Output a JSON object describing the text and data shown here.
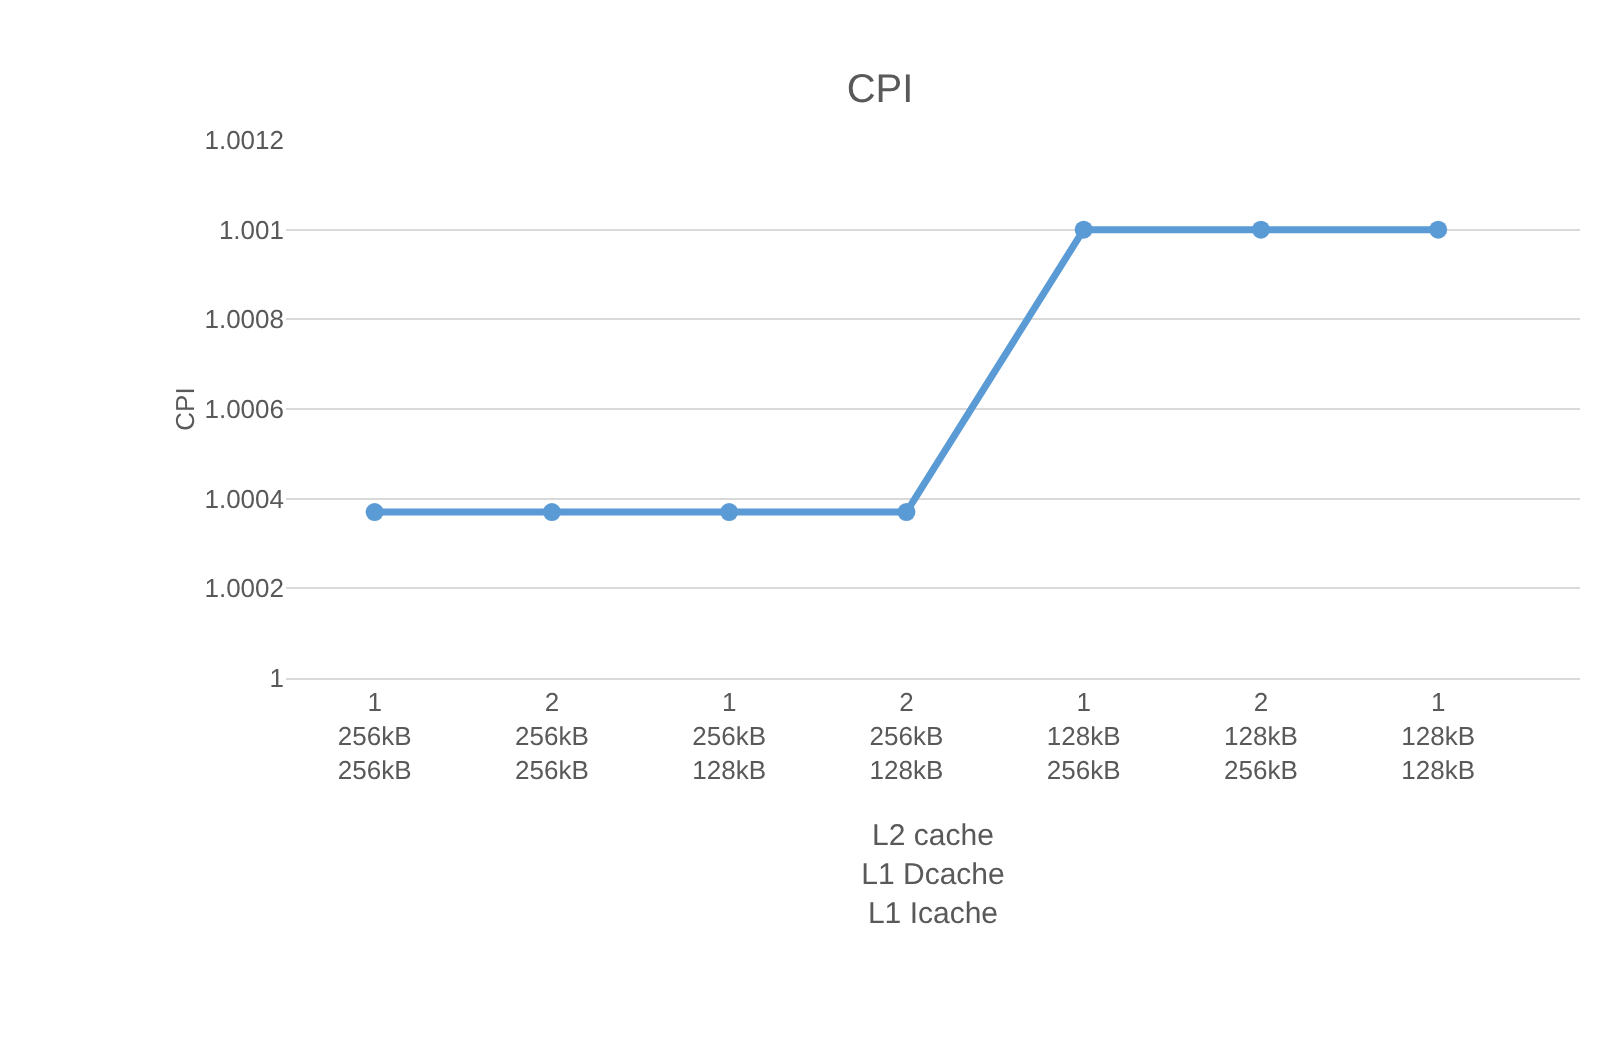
{
  "chart_data": {
    "type": "line",
    "title": "CPI",
    "ylabel": "CPI",
    "xlabel": "L2 cache\nL1 Dcache\nL1 Icache",
    "categories": [
      "1\n256kB\n256kB",
      "2\n256kB\n256kB",
      "1\n256kB\n128kB",
      "2\n256kB\n128kB",
      "1\n128kB\n256kB",
      "2\n128kB\n256kB",
      "1\n128kB\n128kB"
    ],
    "series": [
      {
        "color": "#5b9bd5",
        "values": [
          1.00037,
          1.00037,
          1.00037,
          1.00037,
          1.001,
          1.001,
          1.001
        ]
      }
    ],
    "ylim": [
      1,
      1.0012
    ],
    "yticks": [
      1,
      1.0002,
      1.0004,
      1.0006,
      1.0008,
      1.001,
      1.0012
    ],
    "grid": "y",
    "marker": "circle",
    "line_style": "solid"
  }
}
